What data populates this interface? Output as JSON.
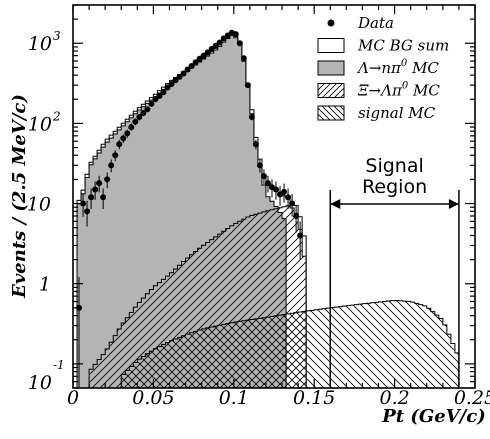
{
  "chart_data": {
    "type": "histogram",
    "xlabel": "Pt (GeV/c)",
    "ylabel": "Events / (2.5 MeV/c)",
    "xlim": [
      0,
      0.25
    ],
    "ylim": [
      0.05,
      3000
    ],
    "yscale": "log",
    "x_ticks": [
      "0",
      "0.05",
      "0.1",
      "0.15",
      "0.2",
      "0.25"
    ],
    "y_ticks": [
      {
        "value": 0.1,
        "base": "10",
        "exp": "-1"
      },
      {
        "value": 1,
        "base": "1",
        "exp": ""
      },
      {
        "value": 10,
        "base": "10",
        "exp": ""
      },
      {
        "value": 100,
        "base": "10",
        "exp": "2"
      },
      {
        "value": 1000,
        "base": "10",
        "exp": "3"
      }
    ],
    "bin_width": 0.0025,
    "legend": {
      "position": "top-right",
      "entries": [
        {
          "key": "data",
          "label": "Data",
          "sup": ""
        },
        {
          "key": "mc_bg_sum",
          "label": "MC BG sum",
          "sup": ""
        },
        {
          "key": "lambda",
          "label": "Λ→nπ",
          "sup": "0",
          "tail": " MC"
        },
        {
          "key": "xi",
          "label": "Ξ→Λπ",
          "sup": "0",
          "tail": " MC"
        },
        {
          "key": "signal",
          "label": "signal MC",
          "sup": ""
        }
      ]
    },
    "annotation": {
      "line1": "Signal",
      "line2": "Region",
      "x_from": 0.16,
      "x_to": 0.24
    },
    "series": [
      {
        "name": "MC BG sum",
        "key": "mc_bg_sum",
        "x_edges": [
          0.0025,
          0.145
        ],
        "anchors": [
          [
            0.0025,
            10
          ],
          [
            0.005,
            12
          ],
          [
            0.0075,
            18
          ],
          [
            0.01,
            30
          ],
          [
            0.02,
            60
          ],
          [
            0.03,
            95
          ],
          [
            0.04,
            150
          ],
          [
            0.05,
            220
          ],
          [
            0.06,
            330
          ],
          [
            0.07,
            460
          ],
          [
            0.08,
            640
          ],
          [
            0.09,
            900
          ],
          [
            0.095,
            1150
          ],
          [
            0.1,
            1350
          ],
          [
            0.105,
            900
          ],
          [
            0.11,
            220
          ],
          [
            0.115,
            45
          ],
          [
            0.12,
            18
          ],
          [
            0.125,
            15
          ],
          [
            0.13,
            13
          ],
          [
            0.135,
            11
          ],
          [
            0.14,
            9
          ],
          [
            0.145,
            3
          ]
        ]
      },
      {
        "name": "Λ→nπ⁰ MC",
        "key": "lambda",
        "x_edges": [
          0.0025,
          0.1325
        ],
        "anchors": [
          [
            0.0025,
            9
          ],
          [
            0.005,
            11
          ],
          [
            0.0075,
            16
          ],
          [
            0.01,
            28
          ],
          [
            0.02,
            55
          ],
          [
            0.03,
            88
          ],
          [
            0.04,
            140
          ],
          [
            0.05,
            205
          ],
          [
            0.06,
            310
          ],
          [
            0.07,
            430
          ],
          [
            0.08,
            610
          ],
          [
            0.09,
            860
          ],
          [
            0.095,
            1100
          ],
          [
            0.1,
            1300
          ],
          [
            0.105,
            860
          ],
          [
            0.11,
            200
          ],
          [
            0.115,
            38
          ],
          [
            0.12,
            13
          ],
          [
            0.125,
            10
          ],
          [
            0.1325,
            6
          ]
        ]
      },
      {
        "name": "Ξ→Λπ⁰ MC",
        "key": "xi",
        "x_edges": [
          0.01,
          0.145
        ],
        "anchors": [
          [
            0.01,
            0.08
          ],
          [
            0.02,
            0.14
          ],
          [
            0.03,
            0.3
          ],
          [
            0.04,
            0.55
          ],
          [
            0.05,
            0.9
          ],
          [
            0.06,
            1.3
          ],
          [
            0.07,
            2.0
          ],
          [
            0.08,
            2.9
          ],
          [
            0.09,
            4.0
          ],
          [
            0.1,
            5.5
          ],
          [
            0.11,
            7.0
          ],
          [
            0.12,
            8.0
          ],
          [
            0.13,
            9.0
          ],
          [
            0.135,
            9.5
          ],
          [
            0.14,
            7.0
          ],
          [
            0.145,
            1.5
          ]
        ]
      },
      {
        "name": "signal MC",
        "key": "signal",
        "x_edges": [
          0.03,
          0.24
        ],
        "anchors": [
          [
            0.03,
            0.07
          ],
          [
            0.04,
            0.11
          ],
          [
            0.05,
            0.15
          ],
          [
            0.06,
            0.19
          ],
          [
            0.07,
            0.23
          ],
          [
            0.08,
            0.27
          ],
          [
            0.09,
            0.3
          ],
          [
            0.1,
            0.33
          ],
          [
            0.12,
            0.38
          ],
          [
            0.14,
            0.44
          ],
          [
            0.16,
            0.5
          ],
          [
            0.18,
            0.56
          ],
          [
            0.2,
            0.62
          ],
          [
            0.21,
            0.6
          ],
          [
            0.22,
            0.52
          ],
          [
            0.23,
            0.35
          ],
          [
            0.24,
            0.12
          ]
        ]
      }
    ],
    "data_points": [
      [
        0.00375,
        0.5
      ],
      [
        0.00625,
        10
      ],
      [
        0.00875,
        8
      ],
      [
        0.01125,
        12
      ],
      [
        0.01375,
        15
      ],
      [
        0.01625,
        18
      ],
      [
        0.01875,
        12
      ],
      [
        0.02125,
        20
      ],
      [
        0.02375,
        30
      ],
      [
        0.02625,
        40
      ],
      [
        0.02875,
        55
      ],
      [
        0.03125,
        65
      ],
      [
        0.03375,
        75
      ],
      [
        0.03625,
        90
      ],
      [
        0.03875,
        105
      ],
      [
        0.04125,
        120
      ],
      [
        0.04375,
        135
      ],
      [
        0.04625,
        150
      ],
      [
        0.04875,
        175
      ],
      [
        0.05125,
        200
      ],
      [
        0.05375,
        220
      ],
      [
        0.05625,
        245
      ],
      [
        0.05875,
        280
      ],
      [
        0.06125,
        310
      ],
      [
        0.06375,
        345
      ],
      [
        0.06625,
        380
      ],
      [
        0.06875,
        420
      ],
      [
        0.07125,
        470
      ],
      [
        0.07375,
        520
      ],
      [
        0.07625,
        580
      ],
      [
        0.07875,
        640
      ],
      [
        0.08125,
        700
      ],
      [
        0.08375,
        770
      ],
      [
        0.08625,
        850
      ],
      [
        0.08875,
        930
      ],
      [
        0.09125,
        1020
      ],
      [
        0.09375,
        1150
      ],
      [
        0.09625,
        1250
      ],
      [
        0.09875,
        1350
      ],
      [
        0.10125,
        1300
      ],
      [
        0.10375,
        1000
      ],
      [
        0.10625,
        650
      ],
      [
        0.10875,
        300
      ],
      [
        0.11125,
        120
      ],
      [
        0.11375,
        55
      ],
      [
        0.11625,
        30
      ],
      [
        0.11875,
        22
      ],
      [
        0.12125,
        18
      ],
      [
        0.12375,
        16
      ],
      [
        0.12625,
        15
      ],
      [
        0.12875,
        13
      ],
      [
        0.13125,
        14
      ],
      [
        0.13375,
        12
      ],
      [
        0.13625,
        10
      ],
      [
        0.13875,
        7
      ],
      [
        0.14125,
        4
      ]
    ]
  }
}
